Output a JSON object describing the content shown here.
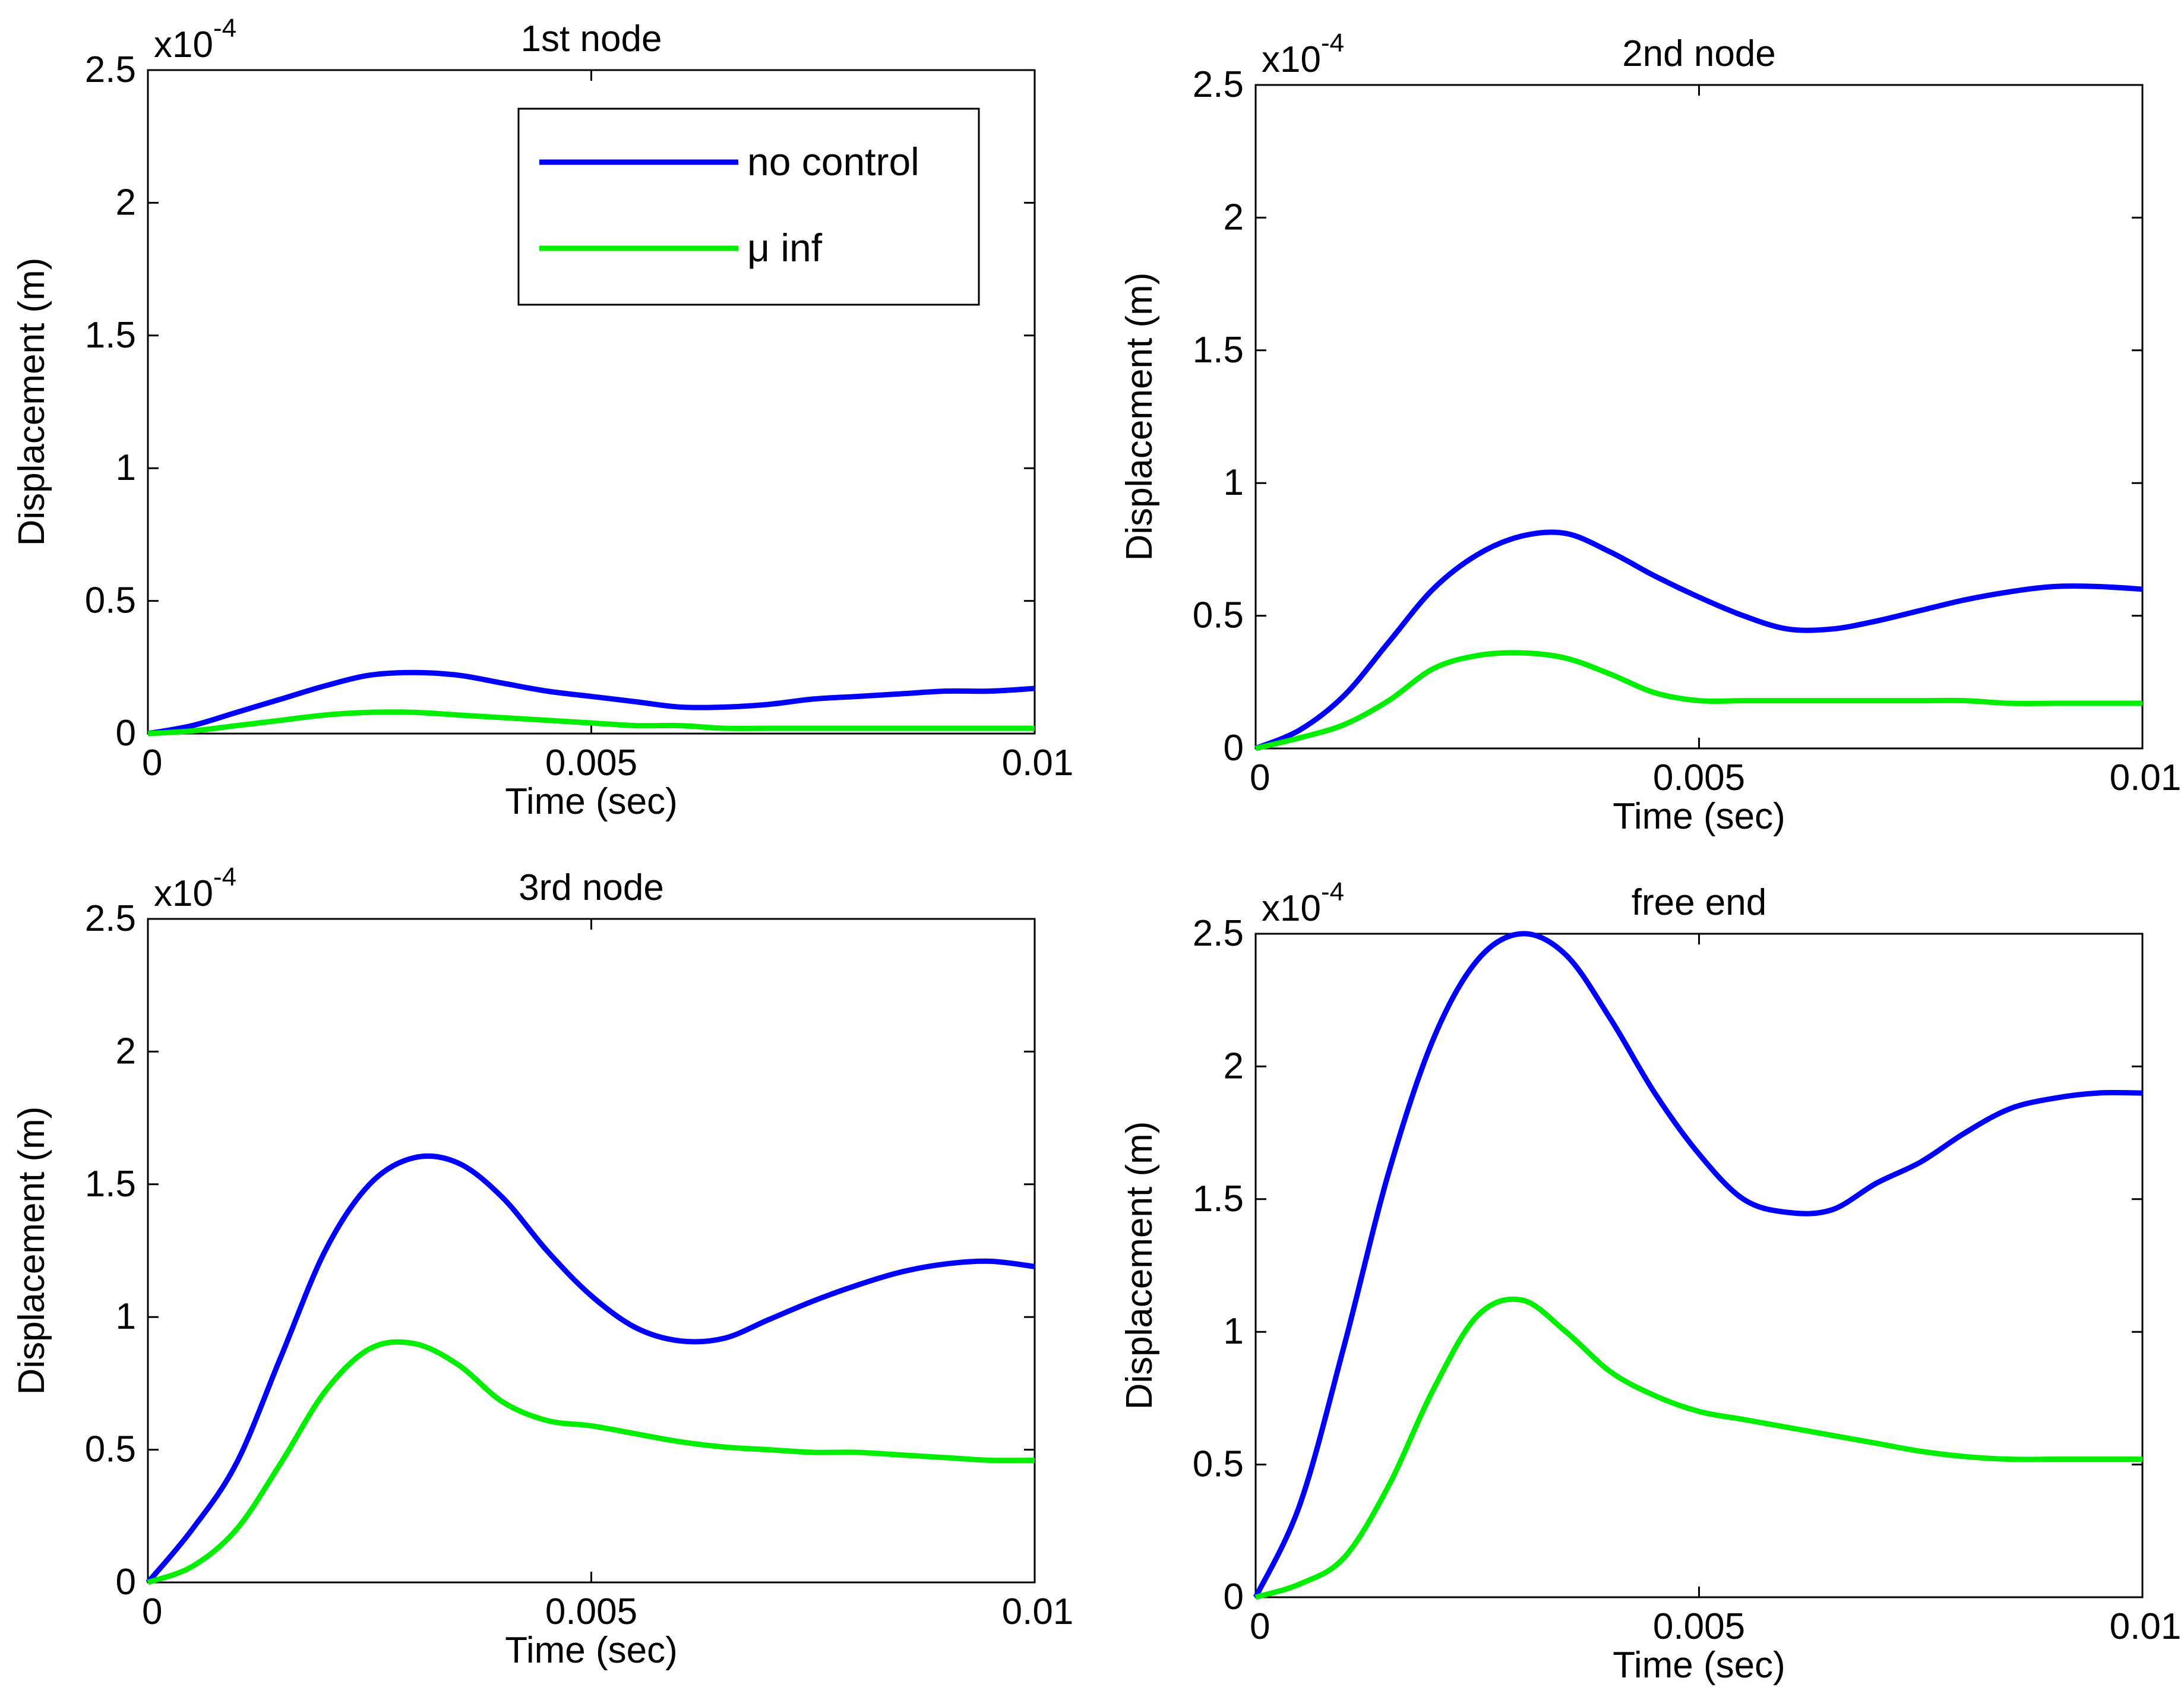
{
  "chart_data": [
    {
      "type": "line",
      "title": "1st node",
      "xlabel": "Time (sec)",
      "ylabel": "Displacement (m)",
      "y_multiplier_base": "x10",
      "y_multiplier_exp": "-4",
      "xlim": [
        0,
        0.01
      ],
      "ylim": [
        0,
        2.5
      ],
      "xticks": [
        0,
        0.005,
        0.01
      ],
      "xtick_labels": [
        "0",
        "0.005",
        "0.01"
      ],
      "yticks": [
        0,
        0.5,
        1,
        1.5,
        2,
        2.5
      ],
      "ytick_labels": [
        "0",
        "0.5",
        "1",
        "1.5",
        "2",
        "2.5"
      ],
      "legend": true,
      "series": [
        {
          "name": "no control",
          "color": "#0000ff",
          "x": [
            0,
            0.0005,
            0.001,
            0.0015,
            0.002,
            0.0025,
            0.003,
            0.0035,
            0.004,
            0.0045,
            0.005,
            0.0055,
            0.006,
            0.0065,
            0.007,
            0.0075,
            0.008,
            0.0085,
            0.009,
            0.0095,
            0.01
          ],
          "y": [
            0,
            0.03,
            0.08,
            0.13,
            0.18,
            0.22,
            0.23,
            0.22,
            0.19,
            0.16,
            0.14,
            0.12,
            0.1,
            0.1,
            0.11,
            0.13,
            0.14,
            0.15,
            0.16,
            0.16,
            0.17
          ]
        },
        {
          "name": "μ inf",
          "color": "#00ee00",
          "x": [
            0,
            0.0005,
            0.001,
            0.0015,
            0.002,
            0.0025,
            0.003,
            0.0035,
            0.004,
            0.0045,
            0.005,
            0.0055,
            0.006,
            0.0065,
            0.007,
            0.0075,
            0.008,
            0.0085,
            0.009,
            0.0095,
            0.01
          ],
          "y": [
            0,
            0.01,
            0.03,
            0.05,
            0.07,
            0.08,
            0.08,
            0.07,
            0.06,
            0.05,
            0.04,
            0.03,
            0.03,
            0.02,
            0.02,
            0.02,
            0.02,
            0.02,
            0.02,
            0.02,
            0.02
          ]
        }
      ]
    },
    {
      "type": "line",
      "title": "2nd node",
      "xlabel": "Time (sec)",
      "ylabel": "Displacement (m)",
      "y_multiplier_base": "x10",
      "y_multiplier_exp": "-4",
      "xlim": [
        0,
        0.01
      ],
      "ylim": [
        0,
        2.5
      ],
      "xticks": [
        0,
        0.005,
        0.01
      ],
      "xtick_labels": [
        "0",
        "0.005",
        "0.01"
      ],
      "yticks": [
        0,
        0.5,
        1,
        1.5,
        2,
        2.5
      ],
      "ytick_labels": [
        "0",
        "0.5",
        "1",
        "1.5",
        "2",
        "2.5"
      ],
      "legend": false,
      "series": [
        {
          "name": "no control",
          "color": "#0000ff",
          "x": [
            0,
            0.0005,
            0.001,
            0.0015,
            0.002,
            0.0025,
            0.003,
            0.0035,
            0.004,
            0.0045,
            0.005,
            0.0055,
            0.006,
            0.0065,
            0.007,
            0.0075,
            0.008,
            0.0085,
            0.009,
            0.0095,
            0.01
          ],
          "y": [
            0,
            0.07,
            0.2,
            0.4,
            0.6,
            0.73,
            0.8,
            0.81,
            0.74,
            0.65,
            0.57,
            0.5,
            0.45,
            0.45,
            0.48,
            0.52,
            0.56,
            0.59,
            0.61,
            0.61,
            0.6
          ]
        },
        {
          "name": "μ inf",
          "color": "#00ee00",
          "x": [
            0,
            0.0005,
            0.001,
            0.0015,
            0.002,
            0.0025,
            0.003,
            0.0035,
            0.004,
            0.0045,
            0.005,
            0.0055,
            0.006,
            0.0065,
            0.007,
            0.0075,
            0.008,
            0.0085,
            0.009,
            0.0095,
            0.01
          ],
          "y": [
            0,
            0.04,
            0.09,
            0.18,
            0.3,
            0.35,
            0.36,
            0.34,
            0.28,
            0.21,
            0.18,
            0.18,
            0.18,
            0.18,
            0.18,
            0.18,
            0.18,
            0.17,
            0.17,
            0.17,
            0.17
          ]
        }
      ]
    },
    {
      "type": "line",
      "title": "3rd node",
      "xlabel": "Time (sec)",
      "ylabel": "Displacement (m)",
      "y_multiplier_base": "x10",
      "y_multiplier_exp": "-4",
      "xlim": [
        0,
        0.01
      ],
      "ylim": [
        0,
        2.5
      ],
      "xticks": [
        0,
        0.005,
        0.01
      ],
      "xtick_labels": [
        "0",
        "0.005",
        "0.01"
      ],
      "yticks": [
        0,
        0.5,
        1,
        1.5,
        2,
        2.5
      ],
      "ytick_labels": [
        "0",
        "0.5",
        "1",
        "1.5",
        "2",
        "2.5"
      ],
      "legend": false,
      "series": [
        {
          "name": "no control",
          "color": "#0000ff",
          "x": [
            0,
            0.0005,
            0.001,
            0.0015,
            0.002,
            0.0025,
            0.003,
            0.0035,
            0.004,
            0.0045,
            0.005,
            0.0055,
            0.006,
            0.0065,
            0.007,
            0.0075,
            0.008,
            0.0085,
            0.009,
            0.0095,
            0.01
          ],
          "y": [
            0,
            0.2,
            0.45,
            0.85,
            1.25,
            1.5,
            1.6,
            1.58,
            1.45,
            1.25,
            1.08,
            0.96,
            0.91,
            0.92,
            0.99,
            1.06,
            1.12,
            1.17,
            1.2,
            1.21,
            1.19
          ]
        },
        {
          "name": "μ inf",
          "color": "#00ee00",
          "x": [
            0,
            0.0005,
            0.001,
            0.0015,
            0.002,
            0.0025,
            0.003,
            0.0035,
            0.004,
            0.0045,
            0.005,
            0.0055,
            0.006,
            0.0065,
            0.007,
            0.0075,
            0.008,
            0.0085,
            0.009,
            0.0095,
            0.01
          ],
          "y": [
            0,
            0.06,
            0.2,
            0.45,
            0.72,
            0.88,
            0.9,
            0.82,
            0.68,
            0.61,
            0.59,
            0.56,
            0.53,
            0.51,
            0.5,
            0.49,
            0.49,
            0.48,
            0.47,
            0.46,
            0.46
          ]
        }
      ]
    },
    {
      "type": "line",
      "title": "free end",
      "xlabel": "Time (sec)",
      "ylabel": "Displacement (m)",
      "y_multiplier_base": "x10",
      "y_multiplier_exp": "-4",
      "xlim": [
        0,
        0.01
      ],
      "ylim": [
        0,
        2.5
      ],
      "xticks": [
        0,
        0.005,
        0.01
      ],
      "xtick_labels": [
        "0",
        "0.005",
        "0.01"
      ],
      "yticks": [
        0,
        0.5,
        1,
        1.5,
        2,
        2.5
      ],
      "ytick_labels": [
        "0",
        "0.5",
        "1",
        "1.5",
        "2",
        "2.5"
      ],
      "legend": false,
      "series": [
        {
          "name": "no control",
          "color": "#0000ff",
          "x": [
            0,
            0.0005,
            0.001,
            0.0015,
            0.002,
            0.0025,
            0.003,
            0.0035,
            0.004,
            0.0045,
            0.005,
            0.0055,
            0.006,
            0.0065,
            0.007,
            0.0075,
            0.008,
            0.0085,
            0.009,
            0.0095,
            0.01
          ],
          "y": [
            0,
            0.35,
            0.95,
            1.6,
            2.1,
            2.4,
            2.5,
            2.42,
            2.18,
            1.9,
            1.67,
            1.5,
            1.45,
            1.46,
            1.56,
            1.64,
            1.75,
            1.84,
            1.88,
            1.9,
            1.9
          ]
        },
        {
          "name": "μ inf",
          "color": "#00ee00",
          "x": [
            0,
            0.0005,
            0.001,
            0.0015,
            0.002,
            0.0025,
            0.003,
            0.0035,
            0.004,
            0.0045,
            0.005,
            0.0055,
            0.006,
            0.0065,
            0.007,
            0.0075,
            0.008,
            0.0085,
            0.009,
            0.0095,
            0.01
          ],
          "y": [
            0,
            0.05,
            0.15,
            0.42,
            0.78,
            1.06,
            1.12,
            1.0,
            0.85,
            0.76,
            0.7,
            0.67,
            0.64,
            0.61,
            0.58,
            0.55,
            0.53,
            0.52,
            0.52,
            0.52,
            0.52
          ]
        }
      ]
    }
  ]
}
